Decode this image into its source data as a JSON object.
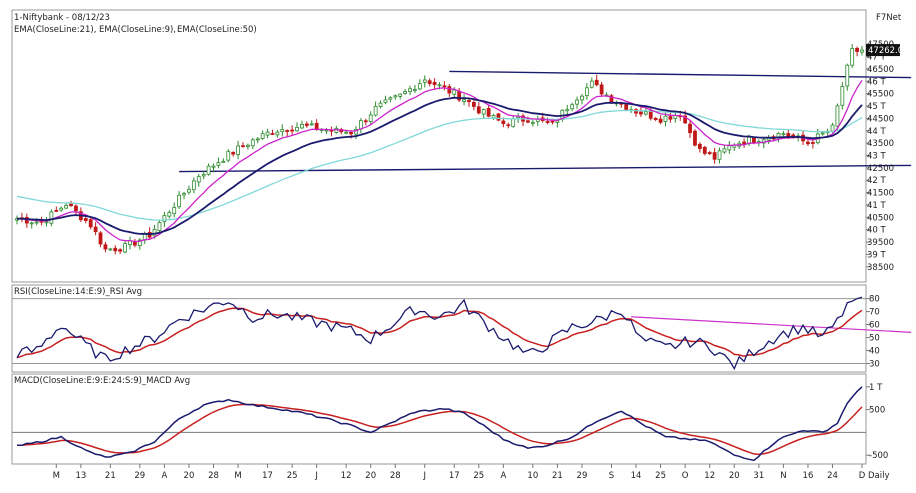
{
  "header": {
    "title": "1-Niftybank - 08/12/23",
    "vendor": "F7Net",
    "ema_labels": [
      {
        "text": "EMA(CloseLine:21),",
        "color": "#1a1a6e"
      },
      {
        "text": "EMA(CloseLine:9),",
        "color": "#cc22cc"
      },
      {
        "text": "EMA(CloseLine:50)",
        "color": "#66cccc"
      }
    ]
  },
  "colors": {
    "up": "#2e8b2e",
    "down": "#c01818",
    "ema21": "#1a1a6e",
    "ema9": "#cc22cc",
    "ema50": "#80d8d8",
    "trend": "#1a1a6e",
    "rsi": "#1a1a6e",
    "rsi_avg": "#c82020",
    "rsi_trend": "#cc33cc",
    "macd": "#1a1a6e",
    "macd_signal": "#c82020",
    "last_price_bg": "#111111"
  },
  "chart_data": [
    {
      "type": "candlestick",
      "title": "1-Niftybank - 08/12/23",
      "series": [
        "EMA(CloseLine:21)",
        "EMA(CloseLine:9)",
        "EMA(CloseLine:50)"
      ],
      "ylim": [
        38250,
        47750
      ],
      "y_ticks": [
        "47500",
        "47 T",
        "46500",
        "46 T",
        "45500",
        "45 T",
        "44500",
        "44 T",
        "43500",
        "43 T",
        "42500",
        "42 T",
        "41500",
        "41 T",
        "40500",
        "40 T",
        "39500",
        "39 T",
        "38500"
      ],
      "y_tick_values": [
        47500,
        47000,
        46500,
        46000,
        45500,
        45000,
        44500,
        44000,
        43500,
        43000,
        42500,
        42000,
        41500,
        41000,
        40500,
        40000,
        39500,
        39000,
        38500
      ],
      "last_price": "47262.0",
      "last_price_value": 47262,
      "anchors": [
        [
          0,
          40450
        ],
        [
          5,
          40300
        ],
        [
          10,
          41050
        ],
        [
          15,
          40200
        ],
        [
          18,
          39200
        ],
        [
          22,
          39300
        ],
        [
          27,
          39800
        ],
        [
          32,
          41000
        ],
        [
          37,
          42200
        ],
        [
          42,
          42900
        ],
        [
          47,
          43500
        ],
        [
          52,
          44000
        ],
        [
          58,
          44200
        ],
        [
          64,
          44000
        ],
        [
          68,
          43950
        ],
        [
          73,
          44900
        ],
        [
          78,
          45400
        ],
        [
          83,
          46100
        ],
        [
          87,
          45700
        ],
        [
          91,
          45300
        ],
        [
          95,
          44700
        ],
        [
          99,
          44300
        ],
        [
          104,
          44500
        ],
        [
          109,
          44250
        ],
        [
          113,
          45200
        ],
        [
          117,
          45900
        ],
        [
          121,
          45300
        ],
        [
          126,
          44800
        ],
        [
          131,
          44500
        ],
        [
          135,
          44700
        ],
        [
          139,
          43200
        ],
        [
          142,
          42900
        ],
        [
          146,
          43500
        ],
        [
          151,
          43700
        ],
        [
          156,
          43900
        ],
        [
          161,
          43500
        ],
        [
          166,
          44100
        ],
        [
          168,
          45800
        ],
        [
          170,
          47200
        ],
        [
          172,
          47262
        ]
      ],
      "trendlines": [
        {
          "from": [
            88,
            46400
          ],
          "to": [
            182,
            46150
          ]
        },
        {
          "from": [
            33,
            42350
          ],
          "to": [
            182,
            42600
          ]
        }
      ],
      "x_ticks": [
        "M",
        "13",
        "21",
        "29",
        "A",
        "20",
        "28",
        "M",
        "17",
        "25",
        "J",
        "12",
        "20",
        "28",
        "J",
        "17",
        "25",
        "A",
        "10",
        "21",
        "29",
        "S",
        "14",
        "25",
        "O",
        "12",
        "20",
        "31",
        "N",
        "16",
        "24",
        "D"
      ],
      "x_tick_index": [
        8,
        13,
        19,
        25,
        30,
        35,
        40,
        45,
        51,
        56,
        61,
        67,
        72,
        77,
        83,
        89,
        94,
        99,
        105,
        110,
        115,
        121,
        126,
        131,
        136,
        141,
        146,
        151,
        156,
        161,
        166,
        172
      ],
      "x_axis_label": "Daily"
    },
    {
      "type": "line",
      "title": "RSI(CloseLine:14:E:9)_RSI Avg",
      "series": [
        "RSI",
        "RSI Avg"
      ],
      "ylim": [
        25,
        82
      ],
      "y_ticks": [
        "80",
        "70",
        "60",
        "50",
        "40",
        "30"
      ],
      "y_tick_values": [
        80,
        70,
        60,
        50,
        40,
        30
      ],
      "reference_lines": [
        80,
        30
      ],
      "rsi_anchors": [
        [
          0,
          38
        ],
        [
          4,
          40
        ],
        [
          9,
          60
        ],
        [
          14,
          44
        ],
        [
          18,
          33
        ],
        [
          23,
          42
        ],
        [
          28,
          50
        ],
        [
          33,
          64
        ],
        [
          38,
          72
        ],
        [
          43,
          79
        ],
        [
          48,
          66
        ],
        [
          53,
          68
        ],
        [
          58,
          64
        ],
        [
          63,
          60
        ],
        [
          68,
          55
        ],
        [
          72,
          49
        ],
        [
          77,
          62
        ],
        [
          81,
          72
        ],
        [
          86,
          66
        ],
        [
          91,
          75
        ],
        [
          95,
          62
        ],
        [
          99,
          50
        ],
        [
          104,
          36
        ],
        [
          108,
          45
        ],
        [
          113,
          58
        ],
        [
          118,
          63
        ],
        [
          123,
          72
        ],
        [
          127,
          48
        ],
        [
          132,
          42
        ],
        [
          137,
          47
        ],
        [
          141,
          44
        ],
        [
          146,
          28
        ],
        [
          150,
          40
        ],
        [
          155,
          52
        ],
        [
          160,
          58
        ],
        [
          164,
          50
        ],
        [
          167,
          62
        ],
        [
          169,
          76
        ],
        [
          171,
          80
        ],
        [
          172,
          81
        ]
      ],
      "trendline": {
        "from": [
          125,
          66
        ],
        "to": [
          182,
          54
        ]
      }
    },
    {
      "type": "line",
      "title": "MACD(CloseLine:E:9:E:24:S:9)_MACD Avg",
      "series": [
        "MACD",
        "MACD Avg"
      ],
      "ylim": [
        -650,
        1150
      ],
      "y_ticks": [
        "1 T",
        "500",
        "-500"
      ],
      "y_tick_values": [
        1000,
        500,
        -500
      ],
      "reference_lines": [
        0
      ],
      "macd_anchors": [
        [
          0,
          -300
        ],
        [
          5,
          -200
        ],
        [
          9,
          -100
        ],
        [
          14,
          -400
        ],
        [
          18,
          -550
        ],
        [
          23,
          -450
        ],
        [
          28,
          -200
        ],
        [
          33,
          300
        ],
        [
          38,
          600
        ],
        [
          43,
          720
        ],
        [
          48,
          600
        ],
        [
          53,
          520
        ],
        [
          58,
          430
        ],
        [
          63,
          300
        ],
        [
          68,
          150
        ],
        [
          72,
          0
        ],
        [
          77,
          250
        ],
        [
          81,
          450
        ],
        [
          87,
          520
        ],
        [
          91,
          420
        ],
        [
          95,
          150
        ],
        [
          99,
          -150
        ],
        [
          104,
          -350
        ],
        [
          108,
          -280
        ],
        [
          113,
          -100
        ],
        [
          118,
          250
        ],
        [
          123,
          480
        ],
        [
          127,
          200
        ],
        [
          132,
          -100
        ],
        [
          137,
          -150
        ],
        [
          141,
          -200
        ],
        [
          146,
          -500
        ],
        [
          150,
          -600
        ],
        [
          155,
          -150
        ],
        [
          160,
          50
        ],
        [
          164,
          0
        ],
        [
          167,
          200
        ],
        [
          169,
          650
        ],
        [
          171,
          900
        ],
        [
          172,
          1000
        ]
      ]
    }
  ],
  "panels": {
    "rsi_title": "RSI(CloseLine:14:E:9)_RSI Avg",
    "macd_title": "MACD(CloseLine:E:9:E:24:S:9)_MACD Avg"
  }
}
